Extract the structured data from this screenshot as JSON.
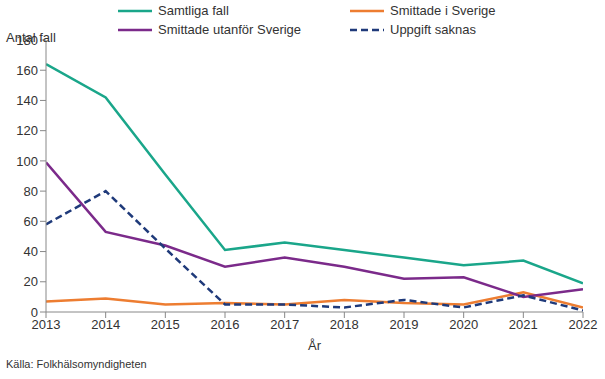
{
  "chart_data": {
    "type": "line",
    "y_label": "Antal fall",
    "x_label": "År",
    "source": "Källa: Folkhälsomyndigheten",
    "x": [
      2013,
      2014,
      2015,
      2016,
      2017,
      2018,
      2019,
      2020,
      2021,
      2022
    ],
    "xlim": [
      2013,
      2022
    ],
    "xticks": [
      2013,
      2014,
      2015,
      2016,
      2017,
      2018,
      2019,
      2020,
      2021,
      2022
    ],
    "ylim": [
      0,
      180
    ],
    "yticks": [
      0,
      20,
      40,
      60,
      80,
      100,
      120,
      140,
      160,
      180
    ],
    "grid": false,
    "legend": "top",
    "series": [
      {
        "name": "Samtliga fall",
        "color": "#1aa68a",
        "line_style": "solid",
        "values": [
          164,
          142,
          91,
          41,
          46,
          41,
          36,
          31,
          34,
          19
        ]
      },
      {
        "name": "Smittade i Sverige",
        "color": "#ed7d31",
        "line_style": "solid",
        "values": [
          7,
          9,
          5,
          6,
          5,
          8,
          6,
          5,
          13,
          3
        ]
      },
      {
        "name": "Smittade utanför Sverige",
        "color": "#7b2a8a",
        "line_style": "solid",
        "values": [
          99,
          53,
          44,
          30,
          36,
          30,
          22,
          23,
          10,
          15
        ]
      },
      {
        "name": "Uppgift saknas",
        "color": "#1f3a7a",
        "line_style": "dashed",
        "values": [
          58,
          80,
          42,
          5,
          5,
          3,
          8,
          3,
          11,
          1
        ]
      }
    ]
  }
}
